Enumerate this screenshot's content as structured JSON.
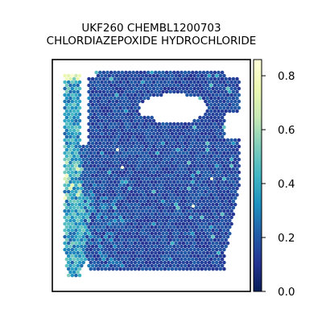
{
  "title_line1": "UKF260 CHEMBL1200703",
  "title_line2": "CHLORDIAZEPOXIDE HYDROCHLORIDE",
  "chart_data": {
    "type": "scatter",
    "subtype": "spatial hexagonal spot map colored by value",
    "title": "UKF260 CHEMBL1200703\nCHLORDIAZEPOXIDE HYDROCHLORIDE",
    "xlabel": "",
    "ylabel": "",
    "axes_ticks_visible": false,
    "colormap": "YlGnBu",
    "colorbar": {
      "range": [
        0.0,
        0.86
      ],
      "ticks": [
        0.0,
        0.2,
        0.4,
        0.6,
        0.8
      ],
      "tick_labels": [
        "0.0",
        "0.2",
        "0.4",
        "0.6",
        "0.8"
      ],
      "position": "right"
    },
    "value_summary": {
      "typical_value": 0.15,
      "main_tissue_range": [
        0.1,
        0.25
      ],
      "left_strip_range": [
        0.2,
        0.6
      ],
      "max_value": 0.86
    },
    "colors": {
      "low": "#081d58",
      "mid": "#1d91c0",
      "high": "#ffffd9"
    }
  }
}
